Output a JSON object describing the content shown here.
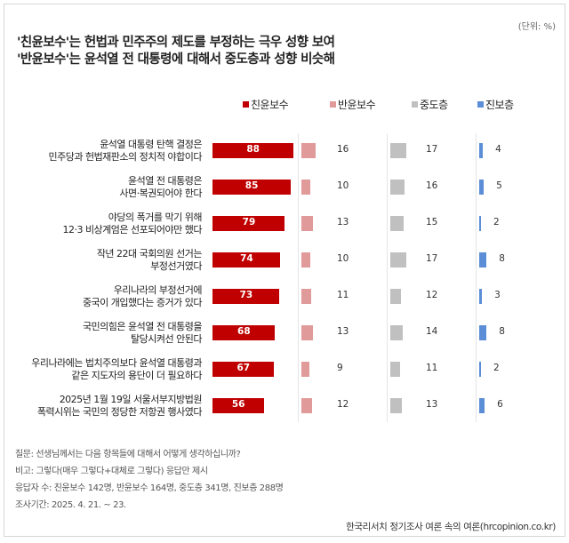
{
  "unit": "(단위: %)",
  "title": [
    "'친윤보수'는 헌법과 민주주의 제도를 부정하는 극우 성향 보여",
    "'반윤보수'는 윤석열 전 대통령에 대해서 중도층과 성향 비슷해"
  ],
  "chart_data": {
    "type": "bar",
    "orientation": "horizontal-small-multiples",
    "categories": [
      [
        "윤석열 대통령 탄핵 결정은",
        "민주당과 헌법재판소의 정치적 야합이다"
      ],
      [
        "윤석열 전 대통령은",
        "사면·복권되어야 한다"
      ],
      [
        "야당의 폭거를 막기 위해",
        "12·3 비상계엄은 선포되어야만 했다"
      ],
      [
        "작년 22대 국회의원 선거는",
        "부정선거였다"
      ],
      [
        "우리나라의 부정선거에",
        "중국이 개입했다는 증거가 있다"
      ],
      [
        "국민의힘은 윤석열 전 대통령을",
        "탈당시켜선 안된다"
      ],
      [
        "우리나라에는 법치주의보다 윤석열 대통령과",
        "같은 지도자의 용단이 더 필요하다"
      ],
      [
        "2025년 1월 19일 서울서부지방법원",
        "폭력시위는 국민의 정당한 저항권 행사였다"
      ]
    ],
    "series": [
      {
        "name": "친윤보수",
        "color": "#c00000",
        "values": [
          88,
          85,
          79,
          74,
          73,
          68,
          67,
          56
        ]
      },
      {
        "name": "반윤보수",
        "color": "#e09a9a",
        "values": [
          16,
          10,
          13,
          10,
          11,
          13,
          9,
          12
        ]
      },
      {
        "name": "중도층",
        "color": "#c0c0c0",
        "values": [
          17,
          16,
          15,
          17,
          12,
          14,
          11,
          13
        ]
      },
      {
        "name": "진보층",
        "color": "#5b8ed6",
        "values": [
          4,
          5,
          2,
          8,
          3,
          8,
          2,
          6
        ]
      }
    ],
    "unit": "%",
    "legend": "top"
  },
  "footnotes": [
    "질문: 선생님께서는 다음 항목들에 대해서 어떻게 생각하십니까?",
    "비고: 그렇다(매우 그렇다+대체로 그렇다) 응답만 제시",
    "응답자 수: 친윤보수 142명, 반윤보수 164명, 중도층 341명, 진보층 288명",
    "조사기간: 2025. 4. 21. ~ 23."
  ],
  "source": "한국리서치 정기조사 여론 속의 여론(hrcopinion.co.kr)"
}
